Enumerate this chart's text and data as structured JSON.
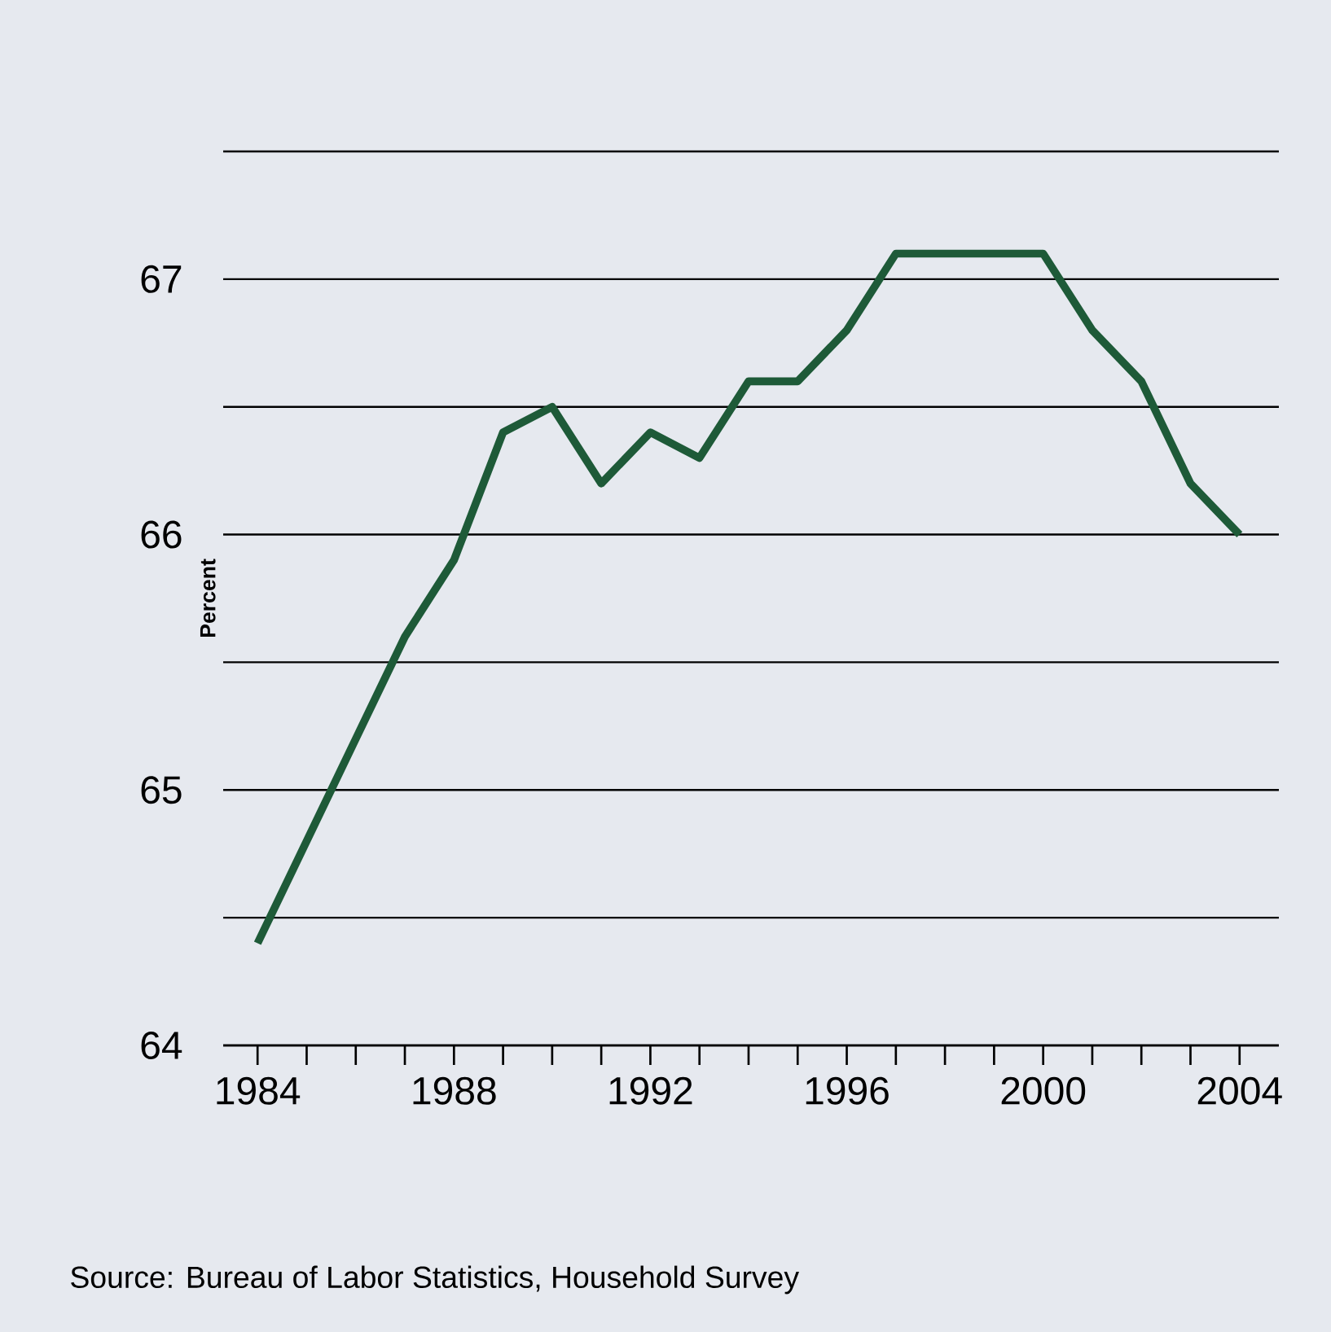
{
  "chart_data": {
    "type": "line",
    "ylabel": "Percent",
    "annotations": [
      "Source: Bureau of Labor Statistics, Household Survey"
    ],
    "x": [
      1984,
      1985,
      1986,
      1987,
      1988,
      1989,
      1990,
      1991,
      1992,
      1993,
      1994,
      1995,
      1996,
      1997,
      1998,
      1999,
      2000,
      2001,
      2002,
      2003,
      2004
    ],
    "series": [
      {
        "color": "#1e5a38",
        "values": [
          64.4,
          64.8,
          65.2,
          65.6,
          65.9,
          66.4,
          66.5,
          66.2,
          66.4,
          66.3,
          66.6,
          66.6,
          66.8,
          67.1,
          67.1,
          67.1,
          67.1,
          66.8,
          66.6,
          66.2,
          66.0
        ]
      }
    ],
    "xlim": [
      1983.3,
      2004.8
    ],
    "ylim": [
      64,
      67.5
    ],
    "xticks": [
      1984,
      {
        "value": 1985,
        "label": null
      },
      {
        "value": 1986,
        "label": null
      },
      {
        "value": 1987,
        "label": null
      },
      1988,
      {
        "value": 1989,
        "label": null
      },
      {
        "value": 1990,
        "label": null
      },
      {
        "value": 1991,
        "label": null
      },
      1992,
      {
        "value": 1993,
        "label": null
      },
      {
        "value": 1994,
        "label": null
      },
      {
        "value": 1995,
        "label": null
      },
      1996,
      {
        "value": 1997,
        "label": null
      },
      {
        "value": 1998,
        "label": null
      },
      {
        "value": 1999,
        "label": null
      },
      2000,
      {
        "value": 2001,
        "label": null
      },
      {
        "value": 2002,
        "label": null
      },
      {
        "value": 2003,
        "label": null
      },
      2004
    ],
    "yticks": [
      64,
      {
        "value": 64.5,
        "label": null
      },
      65,
      {
        "value": 65.5,
        "label": null
      },
      66,
      {
        "value": 66.5,
        "label": null
      },
      67,
      {
        "value": 67.5,
        "label": null
      }
    ],
    "grid": "y",
    "line_style": "solid"
  }
}
